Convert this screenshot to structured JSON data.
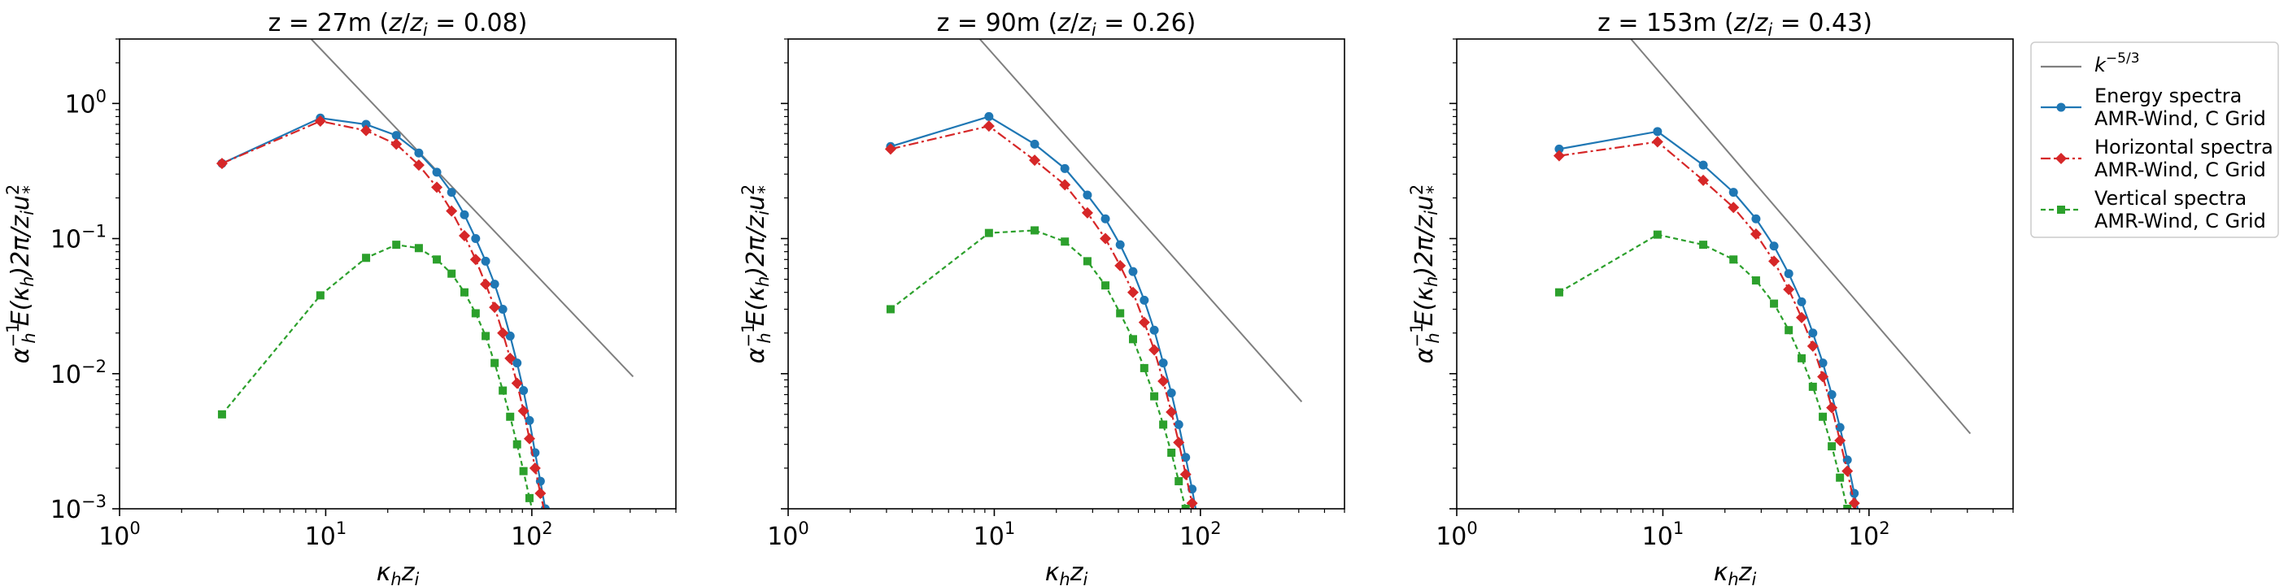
{
  "figure": {
    "tick_major_labels": [
      {
        "base": "10",
        "exp": "0"
      },
      {
        "base": "10",
        "exp": "1"
      },
      {
        "base": "10",
        "exp": "2"
      }
    ],
    "y_tick_labels": [
      {
        "base": "10",
        "exp": "0"
      },
      {
        "base": "10",
        "exp": "−1"
      },
      {
        "base": "10",
        "exp": "−2"
      },
      {
        "base": "10",
        "exp": "−3"
      }
    ],
    "xlabel_parts": {
      "main": "κ",
      "sub1": "h",
      "mid": "z",
      "sub2": "i"
    },
    "ylabel_parts": {
      "alpha": "α",
      "alpha_sub": "h",
      "alpha_sup": "−1",
      "e": "E(κ",
      "e_sub": "h",
      "rest": ")2π/z",
      "rest_sub": "i",
      "u": "u",
      "u_sup": "2",
      "u_sub": "*"
    }
  },
  "legend": {
    "entries": [
      {
        "line1": "k",
        "line1_sup": "−5/3",
        "line2": "",
        "color": "#7f7f7f",
        "marker": "none",
        "dash": ""
      },
      {
        "line1": "Energy spectra",
        "line2": "AMR-Wind, C Grid",
        "color": "#1f77b4",
        "marker": "circle",
        "dash": ""
      },
      {
        "line1": "Horizontal spectra",
        "line2": "AMR-Wind, C Grid",
        "color": "#d62728",
        "marker": "diamond",
        "dash": "12 4 3 4"
      },
      {
        "line1": "Vertical spectra",
        "line2": "AMR-Wind, C Grid",
        "color": "#2ca02c",
        "marker": "square",
        "dash": "6 4"
      }
    ]
  },
  "chart_data": [
    {
      "type": "line",
      "title_main": "z = 27m (",
      "title_frac": {
        "z": "z",
        "slash": "/",
        "zi": "z",
        "sub": "i"
      },
      "title_tail": " = 0.08)",
      "xscale": "log",
      "yscale": "log",
      "xlim": [
        1,
        500
      ],
      "ylim": [
        0.001,
        3
      ],
      "series": [
        {
          "name": "k^-5/3",
          "color": "#7f7f7f",
          "marker": "none",
          "x": [
            8.5,
            310
          ],
          "y": [
            3.0,
            0.0095
          ]
        },
        {
          "name": "Energy spectra AMR-Wind, C Grid",
          "color": "#1f77b4",
          "marker": "circle",
          "x": [
            3.14,
            9.42,
            15.7,
            22.0,
            28.3,
            34.6,
            40.8,
            47.1,
            53.4,
            59.7,
            66.0,
            72.3,
            78.5,
            84.8,
            91.1,
            97.4,
            103.7,
            110.0,
            116.2
          ],
          "y": [
            0.36,
            0.78,
            0.7,
            0.58,
            0.43,
            0.31,
            0.22,
            0.15,
            0.1,
            0.068,
            0.046,
            0.03,
            0.019,
            0.012,
            0.0075,
            0.0045,
            0.0026,
            0.0016,
            0.001
          ]
        },
        {
          "name": "Horizontal spectra AMR-Wind, C Grid",
          "color": "#d62728",
          "marker": "diamond",
          "x": [
            3.14,
            9.42,
            15.7,
            22.0,
            28.3,
            34.6,
            40.8,
            47.1,
            53.4,
            59.7,
            66.0,
            72.3,
            78.5,
            84.8,
            91.1,
            97.4,
            103.7,
            110.0,
            116.2
          ],
          "y": [
            0.36,
            0.74,
            0.63,
            0.5,
            0.35,
            0.24,
            0.16,
            0.105,
            0.07,
            0.046,
            0.031,
            0.02,
            0.013,
            0.0085,
            0.0053,
            0.0033,
            0.002,
            0.0013,
            0.0009
          ]
        },
        {
          "name": "Vertical spectra AMR-Wind, C Grid",
          "color": "#2ca02c",
          "marker": "square",
          "x": [
            3.14,
            9.42,
            15.7,
            22.0,
            28.3,
            34.6,
            40.8,
            47.1,
            53.4,
            59.7,
            66.0,
            72.3,
            78.5,
            84.8,
            91.1,
            97.4,
            103.7
          ],
          "y": [
            0.005,
            0.038,
            0.072,
            0.09,
            0.085,
            0.07,
            0.055,
            0.04,
            0.028,
            0.019,
            0.012,
            0.0075,
            0.0048,
            0.003,
            0.0019,
            0.0012,
            0.0008
          ]
        }
      ]
    },
    {
      "type": "line",
      "title_main": "z = 90m (",
      "title_frac": {
        "z": "z",
        "slash": "/",
        "zi": "z",
        "sub": "i"
      },
      "title_tail": " = 0.26)",
      "xscale": "log",
      "yscale": "log",
      "xlim": [
        1,
        500
      ],
      "ylim": [
        0.001,
        3
      ],
      "series": [
        {
          "name": "k^-5/3",
          "color": "#7f7f7f",
          "marker": "none",
          "x": [
            8.5,
            310
          ],
          "y": [
            3.0,
            0.0062
          ]
        },
        {
          "name": "Energy spectra AMR-Wind, C Grid",
          "color": "#1f77b4",
          "marker": "circle",
          "x": [
            3.14,
            9.42,
            15.7,
            22.0,
            28.3,
            34.6,
            40.8,
            47.1,
            53.4,
            59.7,
            66.0,
            72.3,
            78.5,
            84.8,
            91.1,
            97.4
          ],
          "y": [
            0.48,
            0.8,
            0.5,
            0.33,
            0.21,
            0.14,
            0.09,
            0.057,
            0.035,
            0.021,
            0.012,
            0.0072,
            0.0042,
            0.0024,
            0.0014,
            0.0008
          ]
        },
        {
          "name": "Horizontal spectra AMR-Wind, C Grid",
          "color": "#d62728",
          "marker": "diamond",
          "x": [
            3.14,
            9.42,
            15.7,
            22.0,
            28.3,
            34.6,
            40.8,
            47.1,
            53.4,
            59.7,
            66.0,
            72.3,
            78.5,
            84.8,
            91.1,
            97.4
          ],
          "y": [
            0.46,
            0.68,
            0.38,
            0.25,
            0.155,
            0.1,
            0.063,
            0.04,
            0.024,
            0.015,
            0.0088,
            0.0052,
            0.0031,
            0.0018,
            0.0011,
            0.0007
          ]
        },
        {
          "name": "Vertical spectra AMR-Wind, C Grid",
          "color": "#2ca02c",
          "marker": "square",
          "x": [
            3.14,
            9.42,
            15.7,
            22.0,
            28.3,
            34.6,
            40.8,
            47.1,
            53.4,
            59.7,
            66.0,
            72.3,
            78.5,
            84.8,
            91.1
          ],
          "y": [
            0.03,
            0.11,
            0.115,
            0.095,
            0.068,
            0.045,
            0.028,
            0.018,
            0.011,
            0.0068,
            0.0042,
            0.0026,
            0.0016,
            0.001,
            0.0007
          ]
        }
      ]
    },
    {
      "type": "line",
      "title_main": "z = 153m (",
      "title_frac": {
        "z": "z",
        "slash": "/",
        "zi": "z",
        "sub": "i"
      },
      "title_tail": " = 0.43)",
      "xscale": "log",
      "yscale": "log",
      "xlim": [
        1,
        500
      ],
      "ylim": [
        0.001,
        3
      ],
      "series": [
        {
          "name": "k^-5/3",
          "color": "#7f7f7f",
          "marker": "none",
          "x": [
            7.0,
            310
          ],
          "y": [
            3.0,
            0.0036
          ]
        },
        {
          "name": "Energy spectra AMR-Wind, C Grid",
          "color": "#1f77b4",
          "marker": "circle",
          "x": [
            3.14,
            9.42,
            15.7,
            22.0,
            28.3,
            34.6,
            40.8,
            47.1,
            53.4,
            59.7,
            66.0,
            72.3,
            78.5,
            84.8,
            91.1
          ],
          "y": [
            0.46,
            0.62,
            0.35,
            0.22,
            0.14,
            0.088,
            0.055,
            0.034,
            0.02,
            0.012,
            0.007,
            0.004,
            0.0023,
            0.0013,
            0.0008
          ]
        },
        {
          "name": "Horizontal spectra AMR-Wind, C Grid",
          "color": "#d62728",
          "marker": "diamond",
          "x": [
            3.14,
            9.42,
            15.7,
            22.0,
            28.3,
            34.6,
            40.8,
            47.1,
            53.4,
            59.7,
            66.0,
            72.3,
            78.5,
            84.8,
            91.1
          ],
          "y": [
            0.41,
            0.52,
            0.27,
            0.17,
            0.108,
            0.068,
            0.042,
            0.026,
            0.016,
            0.0095,
            0.0056,
            0.0032,
            0.0019,
            0.0011,
            0.0007
          ]
        },
        {
          "name": "Vertical spectra AMR-Wind, C Grid",
          "color": "#2ca02c",
          "marker": "square",
          "x": [
            3.14,
            9.42,
            15.7,
            22.0,
            28.3,
            34.6,
            40.8,
            47.1,
            53.4,
            59.7,
            66.0,
            72.3,
            78.5,
            84.8
          ],
          "y": [
            0.04,
            0.107,
            0.09,
            0.07,
            0.049,
            0.033,
            0.021,
            0.013,
            0.008,
            0.0048,
            0.0029,
            0.0017,
            0.001,
            0.0007
          ]
        }
      ]
    }
  ]
}
